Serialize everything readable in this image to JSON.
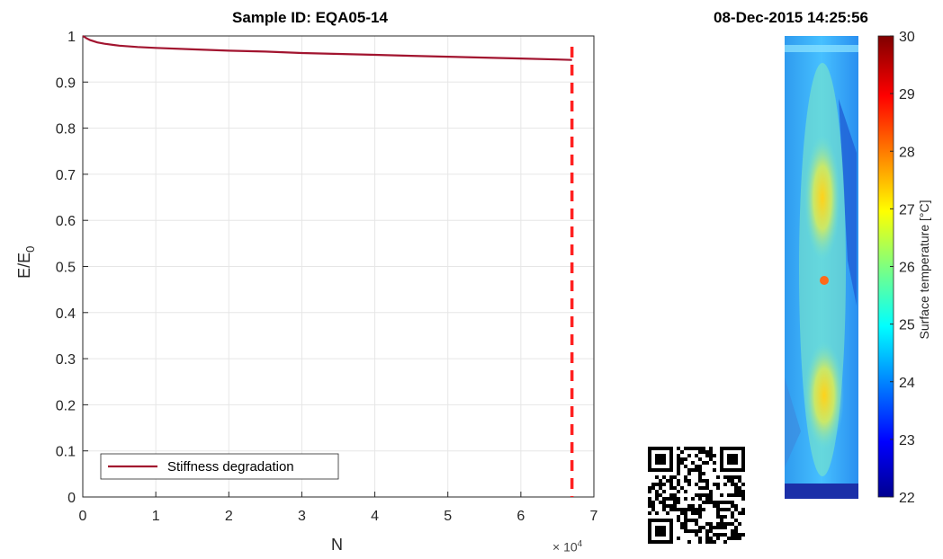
{
  "chart_data": [
    {
      "type": "line",
      "title": "Sample ID: EQA05-14",
      "xlabel": "N",
      "ylabel_main": "E/E",
      "ylabel_sub": "0",
      "x_exponent_base": "× 10",
      "x_exponent": "4",
      "xlim": [
        0,
        7
      ],
      "ylim": [
        0,
        1
      ],
      "x_ticks": [
        "0",
        "1",
        "2",
        "3",
        "4",
        "5",
        "6",
        "7"
      ],
      "y_ticks": [
        "0",
        "0.1",
        "0.2",
        "0.3",
        "0.4",
        "0.5",
        "0.6",
        "0.7",
        "0.8",
        "0.9",
        "1"
      ],
      "grid": true,
      "legend_position": "bottom-left",
      "series": [
        {
          "name": "Stiffness degradation",
          "color": "#a2142f",
          "x": [
            0,
            0.02,
            0.05,
            0.1,
            0.2,
            0.3,
            0.5,
            0.75,
            1.0,
            1.5,
            2.0,
            2.5,
            3.0,
            3.5,
            4.0,
            4.5,
            5.0,
            5.5,
            6.0,
            6.5,
            6.7
          ],
          "y": [
            1.0,
            0.998,
            0.995,
            0.991,
            0.986,
            0.983,
            0.979,
            0.976,
            0.974,
            0.971,
            0.968,
            0.966,
            0.963,
            0.961,
            0.959,
            0.957,
            0.955,
            0.953,
            0.951,
            0.949,
            0.948
          ]
        }
      ],
      "vertical_marker": {
        "x": 6.7,
        "color": "#ff2020",
        "style": "dashed"
      }
    },
    {
      "type": "heatmap",
      "title": "08-Dec-2015 14:25:56",
      "colorbar_label": "Surface temperature [°C]",
      "colorbar_range": [
        22,
        30
      ],
      "colorbar_ticks": [
        "22",
        "23",
        "24",
        "25",
        "26",
        "27",
        "28",
        "29",
        "30"
      ],
      "colormap": "jet"
    }
  ]
}
